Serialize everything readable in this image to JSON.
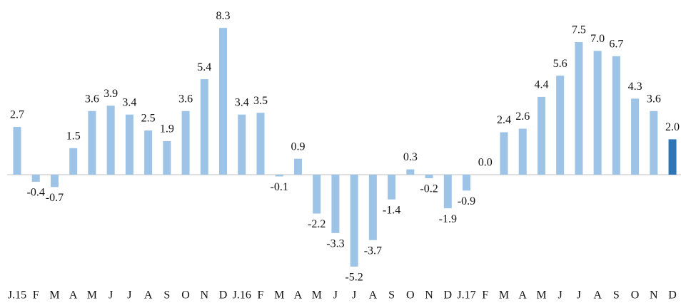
{
  "chart_data": {
    "type": "bar",
    "categories": [
      "J.15",
      "F",
      "M",
      "A",
      "M",
      "J",
      "J",
      "A",
      "S",
      "O",
      "N",
      "D",
      "J.16",
      "F",
      "M",
      "A",
      "M",
      "J",
      "J",
      "A",
      "S",
      "O",
      "N",
      "D",
      "J.17",
      "F",
      "M",
      "A",
      "M",
      "J",
      "J",
      "A",
      "S",
      "O",
      "N",
      "D"
    ],
    "values": [
      2.7,
      -0.4,
      -0.7,
      1.5,
      3.6,
      3.9,
      3.4,
      2.5,
      1.9,
      3.6,
      5.4,
      8.3,
      3.4,
      3.5,
      -0.1,
      0.9,
      -2.2,
      -3.3,
      -5.2,
      -3.7,
      -1.4,
      0.3,
      -0.2,
      -1.9,
      -0.9,
      0.0,
      2.4,
      2.6,
      4.4,
      5.6,
      7.5,
      7.0,
      6.7,
      4.3,
      3.6,
      2.0
    ],
    "value_labels": [
      "2.7",
      "-0.4",
      "-0.7",
      "1.5",
      "3.6",
      "3.9",
      "3.4",
      "2.5",
      "1.9",
      "3.6",
      "5.4",
      "8.3",
      "3.4",
      "3.5",
      "-0.1",
      "0.9",
      "-2.2",
      "-3.3",
      "-5.2",
      "-3.7",
      "-1.4",
      "0.3",
      "-0.2",
      "-1.9",
      "-0.9",
      "0.0",
      "2.4",
      "2.6",
      "4.4",
      "5.6",
      "7.5",
      "7.0",
      "6.7",
      "4.3",
      "3.6",
      "2.0"
    ],
    "colors": [
      "#9dc3e6",
      "#9dc3e6",
      "#9dc3e6",
      "#9dc3e6",
      "#9dc3e6",
      "#9dc3e6",
      "#9dc3e6",
      "#9dc3e6",
      "#9dc3e6",
      "#9dc3e6",
      "#9dc3e6",
      "#9dc3e6",
      "#9dc3e6",
      "#9dc3e6",
      "#9dc3e6",
      "#9dc3e6",
      "#9dc3e6",
      "#9dc3e6",
      "#9dc3e6",
      "#9dc3e6",
      "#9dc3e6",
      "#9dc3e6",
      "#9dc3e6",
      "#9dc3e6",
      "#9dc3e6",
      "#9dc3e6",
      "#9dc3e6",
      "#9dc3e6",
      "#9dc3e6",
      "#9dc3e6",
      "#9dc3e6",
      "#9dc3e6",
      "#9dc3e6",
      "#9dc3e6",
      "#9dc3e6",
      "#2e75b6"
    ],
    "ylim": [
      -6,
      9
    ]
  }
}
